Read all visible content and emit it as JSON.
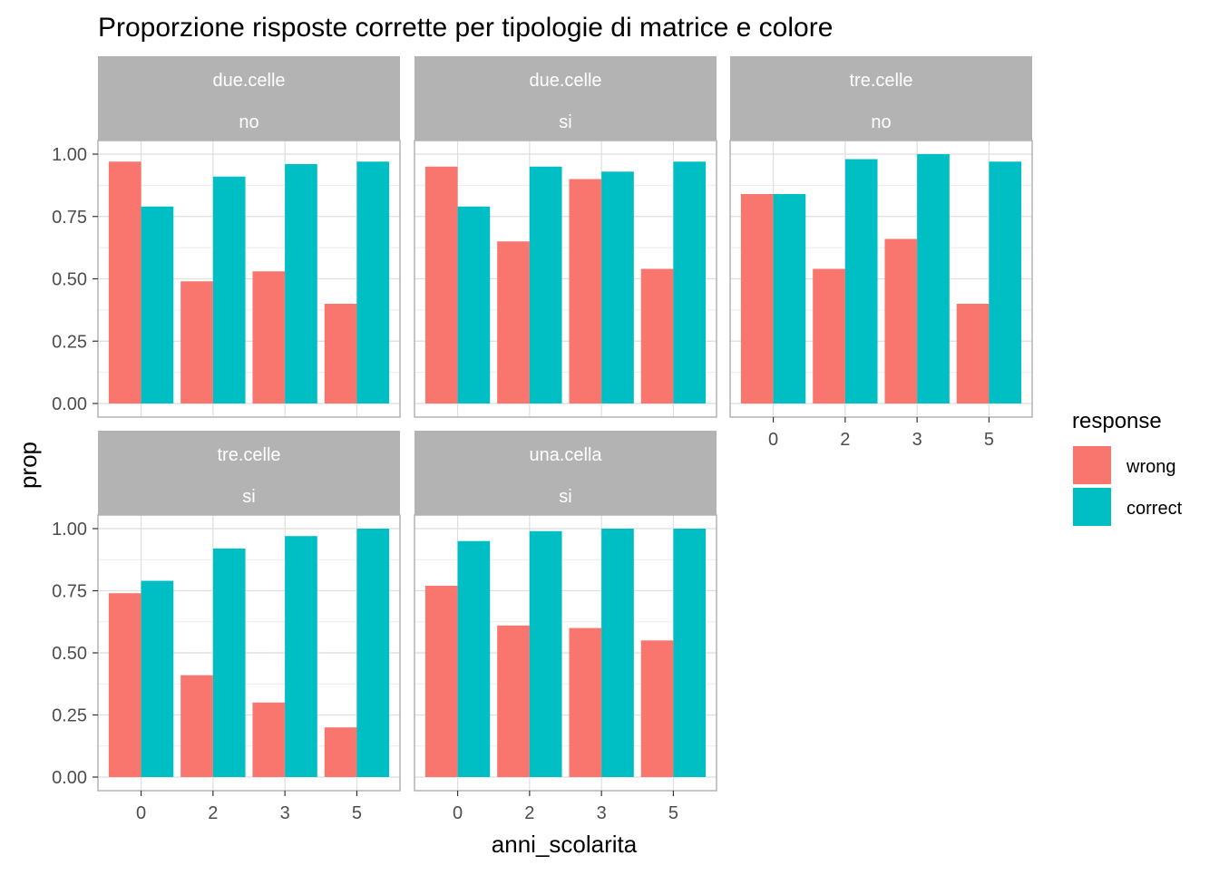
{
  "chart_data": {
    "type": "bar",
    "title": "Proporzione risposte corrette per tipologie di matrice e colore",
    "xlabel": "anni_scolarita",
    "ylabel": "prop",
    "categories": [
      "0",
      "2",
      "3",
      "5"
    ],
    "ylim": [
      0,
      1
    ],
    "yticks": [
      "0.00",
      "0.25",
      "0.50",
      "0.75",
      "1.00"
    ],
    "grid": true,
    "legend": {
      "title": "response",
      "position": "right",
      "entries": [
        {
          "label": "wrong",
          "color": "#F8766D"
        },
        {
          "label": "correct",
          "color": "#00BFC4"
        }
      ]
    },
    "panels": [
      {
        "strip1": "due.celle",
        "strip2": "no",
        "series": [
          {
            "name": "wrong",
            "values": [
              0.97,
              0.49,
              0.53,
              0.4
            ]
          },
          {
            "name": "correct",
            "values": [
              0.79,
              0.91,
              0.96,
              0.97
            ]
          }
        ]
      },
      {
        "strip1": "due.celle",
        "strip2": "si",
        "series": [
          {
            "name": "wrong",
            "values": [
              0.95,
              0.65,
              0.9,
              0.54
            ]
          },
          {
            "name": "correct",
            "values": [
              0.79,
              0.95,
              0.93,
              0.97
            ]
          }
        ]
      },
      {
        "strip1": "tre.celle",
        "strip2": "no",
        "series": [
          {
            "name": "wrong",
            "values": [
              0.84,
              0.54,
              0.66,
              0.4
            ]
          },
          {
            "name": "correct",
            "values": [
              0.84,
              0.98,
              1.0,
              0.97
            ]
          }
        ]
      },
      {
        "strip1": "tre.celle",
        "strip2": "si",
        "series": [
          {
            "name": "wrong",
            "values": [
              0.74,
              0.41,
              0.3,
              0.2
            ]
          },
          {
            "name": "correct",
            "values": [
              0.79,
              0.92,
              0.97,
              1.0
            ]
          }
        ]
      },
      {
        "strip1": "una.cella",
        "strip2": "si",
        "series": [
          {
            "name": "wrong",
            "values": [
              0.77,
              0.61,
              0.6,
              0.55
            ]
          },
          {
            "name": "correct",
            "values": [
              0.95,
              0.99,
              1.0,
              1.0
            ]
          }
        ]
      }
    ]
  }
}
